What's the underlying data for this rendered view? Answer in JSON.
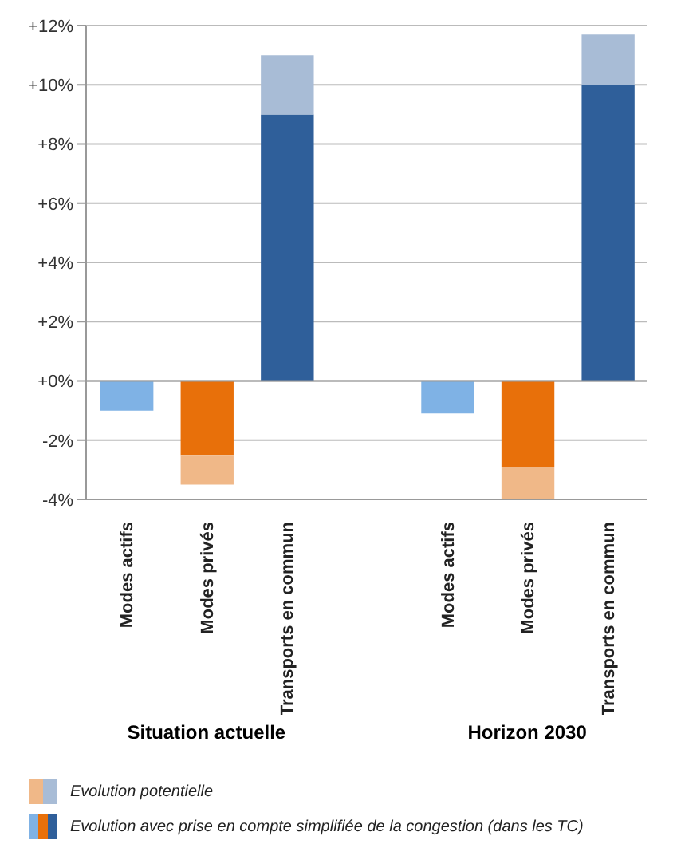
{
  "chart_data": {
    "type": "bar",
    "stacked": true,
    "categories": [
      "Modes actifs",
      "Modes privés",
      "Transports en commun",
      null,
      "Modes actifs",
      "Modes privés",
      "Transports en commun"
    ],
    "series": [
      {
        "name": "Evolution avec prise en compte simplifiée de la congestion (dans les TC)",
        "colors": [
          "#7fb2e5",
          "#e8700a",
          "#2f5f9a",
          null,
          "#7fb2e5",
          "#e8700a",
          "#2f5f9a"
        ],
        "values": [
          -1,
          -2.5,
          9,
          null,
          -1.1,
          -2.9,
          10
        ]
      },
      {
        "name": "Evolution potentielle",
        "colors": [
          "#b8d4f0",
          "#f0b888",
          "#a8bcd6",
          null,
          "#b8d4f0",
          "#f0b888",
          "#a8bcd6"
        ],
        "values": [
          0,
          -1,
          2,
          null,
          0,
          -1.1,
          1.7
        ]
      }
    ],
    "ylim": [
      -4,
      12
    ],
    "yticks": [
      {
        "value": -4,
        "label": "-4%"
      },
      {
        "value": -2,
        "label": "-2%"
      },
      {
        "value": 0,
        "label": "+0%"
      },
      {
        "value": 2,
        "label": "+2%"
      },
      {
        "value": 4,
        "label": "+4%"
      },
      {
        "value": 6,
        "label": "+6%"
      },
      {
        "value": 8,
        "label": "+8%"
      },
      {
        "value": 10,
        "label": "+10%"
      },
      {
        "value": 12,
        "label": "+12%"
      }
    ],
    "grid": "y",
    "legend": "bottom",
    "annotations": [
      "Situation actuelle",
      "Horizon 2030"
    ]
  }
}
